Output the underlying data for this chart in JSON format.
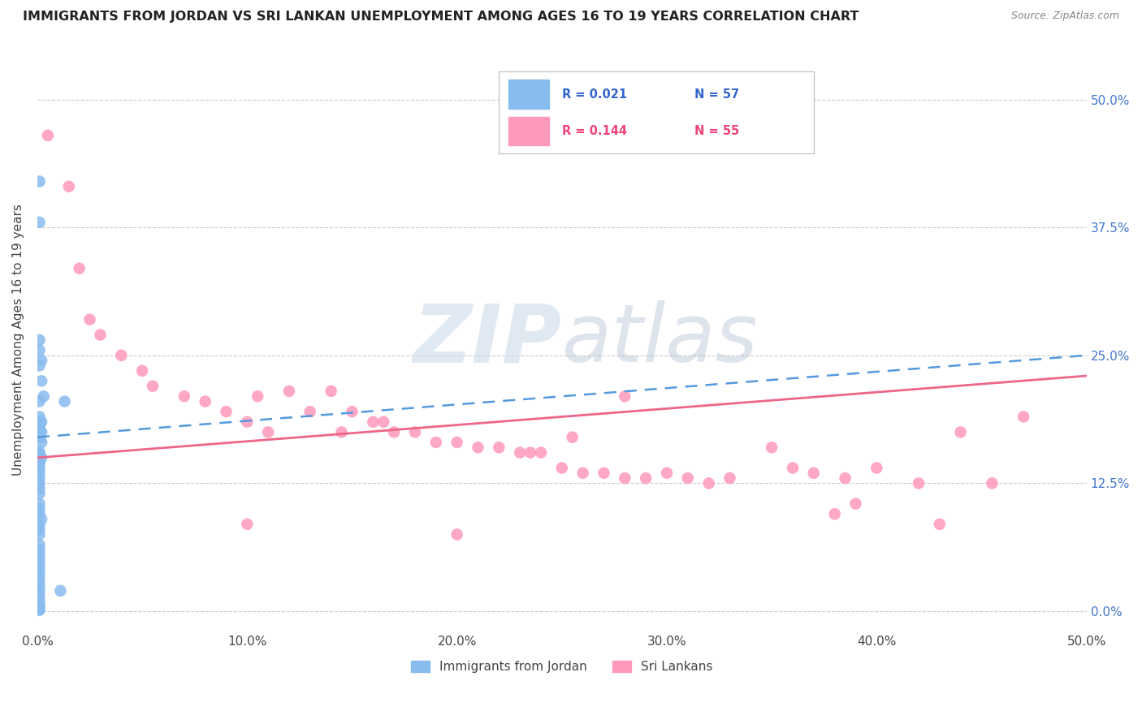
{
  "title": "IMMIGRANTS FROM JORDAN VS SRI LANKAN UNEMPLOYMENT AMONG AGES 16 TO 19 YEARS CORRELATION CHART",
  "source": "Source: ZipAtlas.com",
  "ylabel": "Unemployment Among Ages 16 to 19 years",
  "xlim": [
    0.0,
    0.5
  ],
  "ylim": [
    -0.02,
    0.55
  ],
  "xticks": [
    0.0,
    0.1,
    0.2,
    0.3,
    0.4,
    0.5
  ],
  "xticklabels": [
    "0.0%",
    "10.0%",
    "20.0%",
    "30.0%",
    "40.0%",
    "50.0%"
  ],
  "ytick_positions": [
    0.0,
    0.125,
    0.25,
    0.375,
    0.5
  ],
  "ytick_labels_right": [
    "0.0%",
    "12.5%",
    "25.0%",
    "37.5%",
    "50.0%"
  ],
  "color_jordan": "#88BBEE",
  "color_srilanka": "#FF99BB",
  "trend_jordan_color": "#5599DD",
  "trend_srilanka_color": "#EE6688",
  "jordan_trend_start": 0.17,
  "jordan_trend_end": 0.25,
  "srilanka_trend_start": 0.15,
  "srilanka_trend_end": 0.23,
  "jordan_x": [
    0.001,
    0.013,
    0.001,
    0.001,
    0.001,
    0.002,
    0.001,
    0.002,
    0.003,
    0.001,
    0.001,
    0.002,
    0.001,
    0.001,
    0.001,
    0.001,
    0.002,
    0.001,
    0.001,
    0.001,
    0.002,
    0.001,
    0.001,
    0.002,
    0.001,
    0.001,
    0.001,
    0.001,
    0.001,
    0.001,
    0.001,
    0.001,
    0.001,
    0.001,
    0.001,
    0.001,
    0.002,
    0.001,
    0.001,
    0.001,
    0.001,
    0.001,
    0.001,
    0.001,
    0.001,
    0.001,
    0.001,
    0.001,
    0.001,
    0.001,
    0.011,
    0.001,
    0.001,
    0.001,
    0.001,
    0.001,
    0.001
  ],
  "jordan_y": [
    0.42,
    0.205,
    0.38,
    0.265,
    0.255,
    0.245,
    0.24,
    0.225,
    0.21,
    0.205,
    0.19,
    0.185,
    0.185,
    0.18,
    0.175,
    0.175,
    0.175,
    0.17,
    0.17,
    0.17,
    0.165,
    0.155,
    0.155,
    0.15,
    0.15,
    0.145,
    0.145,
    0.14,
    0.135,
    0.13,
    0.125,
    0.12,
    0.115,
    0.105,
    0.1,
    0.095,
    0.09,
    0.085,
    0.08,
    0.075,
    0.065,
    0.06,
    0.055,
    0.05,
    0.045,
    0.04,
    0.035,
    0.03,
    0.025,
    0.02,
    0.02,
    0.015,
    0.01,
    0.005,
    0.005,
    0.002,
    0.001
  ],
  "srilanka_x": [
    0.005,
    0.015,
    0.02,
    0.025,
    0.03,
    0.04,
    0.05,
    0.055,
    0.07,
    0.08,
    0.09,
    0.1,
    0.105,
    0.11,
    0.12,
    0.13,
    0.14,
    0.145,
    0.15,
    0.16,
    0.165,
    0.17,
    0.18,
    0.19,
    0.2,
    0.21,
    0.22,
    0.23,
    0.235,
    0.24,
    0.25,
    0.255,
    0.26,
    0.27,
    0.28,
    0.29,
    0.3,
    0.31,
    0.32,
    0.33,
    0.35,
    0.36,
    0.37,
    0.38,
    0.39,
    0.4,
    0.42,
    0.44,
    0.455,
    0.47,
    0.28,
    0.2,
    0.1,
    0.385,
    0.43
  ],
  "srilanka_y": [
    0.465,
    0.415,
    0.335,
    0.285,
    0.27,
    0.25,
    0.235,
    0.22,
    0.21,
    0.205,
    0.195,
    0.185,
    0.21,
    0.175,
    0.215,
    0.195,
    0.215,
    0.175,
    0.195,
    0.185,
    0.185,
    0.175,
    0.175,
    0.165,
    0.165,
    0.16,
    0.16,
    0.155,
    0.155,
    0.155,
    0.14,
    0.17,
    0.135,
    0.135,
    0.13,
    0.13,
    0.135,
    0.13,
    0.125,
    0.13,
    0.16,
    0.14,
    0.135,
    0.095,
    0.105,
    0.14,
    0.125,
    0.175,
    0.125,
    0.19,
    0.21,
    0.075,
    0.085,
    0.13,
    0.085
  ],
  "watermark_zip": "ZIP",
  "watermark_atlas": "atlas",
  "background_color": "#FFFFFF",
  "grid_color": "#CCCCCC"
}
